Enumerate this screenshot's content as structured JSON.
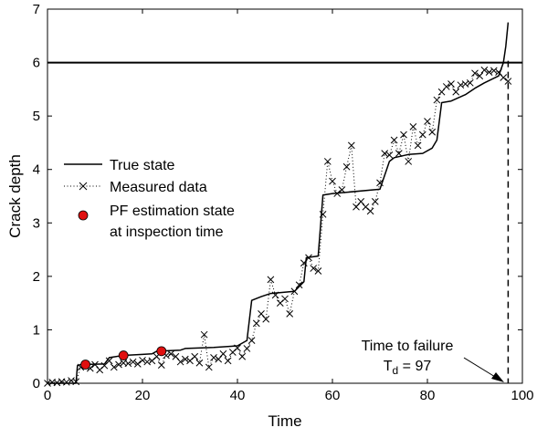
{
  "chart_data": {
    "type": "line",
    "xlabel": "Time",
    "ylabel": "Crack depth",
    "xlim": [
      0,
      100
    ],
    "ylim": [
      0,
      7
    ],
    "xticks": [
      0,
      20,
      40,
      60,
      80,
      100
    ],
    "yticks": [
      0,
      1,
      2,
      3,
      4,
      5,
      6,
      7
    ],
    "grid": false,
    "legend_position": "middle-left",
    "threshold": 6,
    "failure_time": 97,
    "annotation": {
      "line1": "Time to failure",
      "line2_prefix": "T",
      "line2_sub": "d",
      "line2_rest": " = 97"
    },
    "legend": {
      "true_state": "True state",
      "measured": "Measured data",
      "pf_line1": "PF estimation state",
      "pf_line2": "at inspection time"
    },
    "colors": {
      "true_state": "#000000",
      "measured": "#000000",
      "pf_marker": "#e01010",
      "threshold": "#000000"
    },
    "series": [
      {
        "name": "True state",
        "style": "solid",
        "points": [
          [
            0,
            0
          ],
          [
            6,
            0
          ],
          [
            6.3,
            0.33
          ],
          [
            7,
            0.35
          ],
          [
            12,
            0.36
          ],
          [
            13,
            0.48
          ],
          [
            16,
            0.52
          ],
          [
            20,
            0.54
          ],
          [
            22,
            0.55
          ],
          [
            23,
            0.6
          ],
          [
            28,
            0.62
          ],
          [
            29,
            0.65
          ],
          [
            35,
            0.67
          ],
          [
            40,
            0.7
          ],
          [
            42,
            0.8
          ],
          [
            43,
            1.55
          ],
          [
            45,
            1.62
          ],
          [
            47,
            1.68
          ],
          [
            52,
            1.72
          ],
          [
            54,
            1.9
          ],
          [
            54.5,
            2.35
          ],
          [
            57,
            2.38
          ],
          [
            58,
            3.52
          ],
          [
            60,
            3.55
          ],
          [
            70,
            3.63
          ],
          [
            72,
            4.15
          ],
          [
            73,
            4.22
          ],
          [
            76,
            4.28
          ],
          [
            79,
            4.3
          ],
          [
            81,
            4.4
          ],
          [
            82,
            4.55
          ],
          [
            83,
            5.25
          ],
          [
            85,
            5.28
          ],
          [
            88,
            5.4
          ],
          [
            90,
            5.52
          ],
          [
            92,
            5.62
          ],
          [
            95,
            5.75
          ],
          [
            96,
            6.0
          ],
          [
            96.5,
            6.3
          ],
          [
            97,
            6.75
          ]
        ]
      },
      {
        "name": "Measured data",
        "style": "dotted-x",
        "points": [
          [
            0,
            0
          ],
          [
            1,
            0.02
          ],
          [
            2,
            0.01
          ],
          [
            3,
            0.03
          ],
          [
            4,
            0.02
          ],
          [
            5,
            0.05
          ],
          [
            6,
            0.03
          ],
          [
            7,
            0.3
          ],
          [
            8,
            0.32
          ],
          [
            9,
            0.28
          ],
          [
            10,
            0.35
          ],
          [
            11,
            0.25
          ],
          [
            12,
            0.33
          ],
          [
            13,
            0.42
          ],
          [
            14,
            0.3
          ],
          [
            15,
            0.35
          ],
          [
            16,
            0.38
          ],
          [
            17,
            0.37
          ],
          [
            18,
            0.4
          ],
          [
            19,
            0.36
          ],
          [
            20,
            0.43
          ],
          [
            21,
            0.4
          ],
          [
            22,
            0.42
          ],
          [
            23,
            0.5
          ],
          [
            24,
            0.34
          ],
          [
            25,
            0.52
          ],
          [
            26,
            0.55
          ],
          [
            27,
            0.5
          ],
          [
            28,
            0.4
          ],
          [
            29,
            0.45
          ],
          [
            30,
            0.42
          ],
          [
            31,
            0.5
          ],
          [
            32,
            0.38
          ],
          [
            33,
            0.91
          ],
          [
            34,
            0.3
          ],
          [
            35,
            0.48
          ],
          [
            36,
            0.45
          ],
          [
            37,
            0.55
          ],
          [
            38,
            0.42
          ],
          [
            39,
            0.58
          ],
          [
            40,
            0.66
          ],
          [
            41,
            0.5
          ],
          [
            42,
            0.65
          ],
          [
            43,
            0.8
          ],
          [
            44,
            1.12
          ],
          [
            45,
            1.3
          ],
          [
            46,
            1.2
          ],
          [
            47,
            1.94
          ],
          [
            48,
            1.65
          ],
          [
            49,
            1.5
          ],
          [
            50,
            1.58
          ],
          [
            51,
            1.3
          ],
          [
            52,
            1.72
          ],
          [
            53,
            1.84
          ],
          [
            54,
            2.25
          ],
          [
            55,
            2.35
          ],
          [
            56,
            2.15
          ],
          [
            57,
            2.1
          ],
          [
            58,
            3.16
          ],
          [
            59,
            4.15
          ],
          [
            60,
            3.78
          ],
          [
            61,
            3.55
          ],
          [
            62,
            3.62
          ],
          [
            63,
            4.05
          ],
          [
            64,
            4.45
          ],
          [
            65,
            3.3
          ],
          [
            66,
            3.4
          ],
          [
            67,
            3.3
          ],
          [
            68,
            3.22
          ],
          [
            69,
            3.4
          ],
          [
            70,
            3.75
          ],
          [
            71,
            4.3
          ],
          [
            72,
            4.27
          ],
          [
            73,
            4.55
          ],
          [
            74,
            4.3
          ],
          [
            75,
            4.65
          ],
          [
            76,
            4.15
          ],
          [
            77,
            4.8
          ],
          [
            78,
            4.45
          ],
          [
            79,
            4.65
          ],
          [
            80,
            4.9
          ],
          [
            81,
            4.7
          ],
          [
            82,
            5.3
          ],
          [
            83,
            5.45
          ],
          [
            84,
            5.55
          ],
          [
            85,
            5.6
          ],
          [
            86,
            5.45
          ],
          [
            87,
            5.58
          ],
          [
            88,
            5.6
          ],
          [
            89,
            5.62
          ],
          [
            90,
            5.8
          ],
          [
            91,
            5.75
          ],
          [
            92,
            5.86
          ],
          [
            93,
            5.82
          ],
          [
            94,
            5.85
          ],
          [
            95,
            5.82
          ],
          [
            96,
            5.72
          ],
          [
            97,
            5.65
          ]
        ]
      },
      {
        "name": "PF estimation state at inspection time",
        "style": "marker",
        "points": [
          [
            8,
            0.35
          ],
          [
            16,
            0.52
          ],
          [
            24,
            0.6
          ]
        ]
      }
    ]
  }
}
